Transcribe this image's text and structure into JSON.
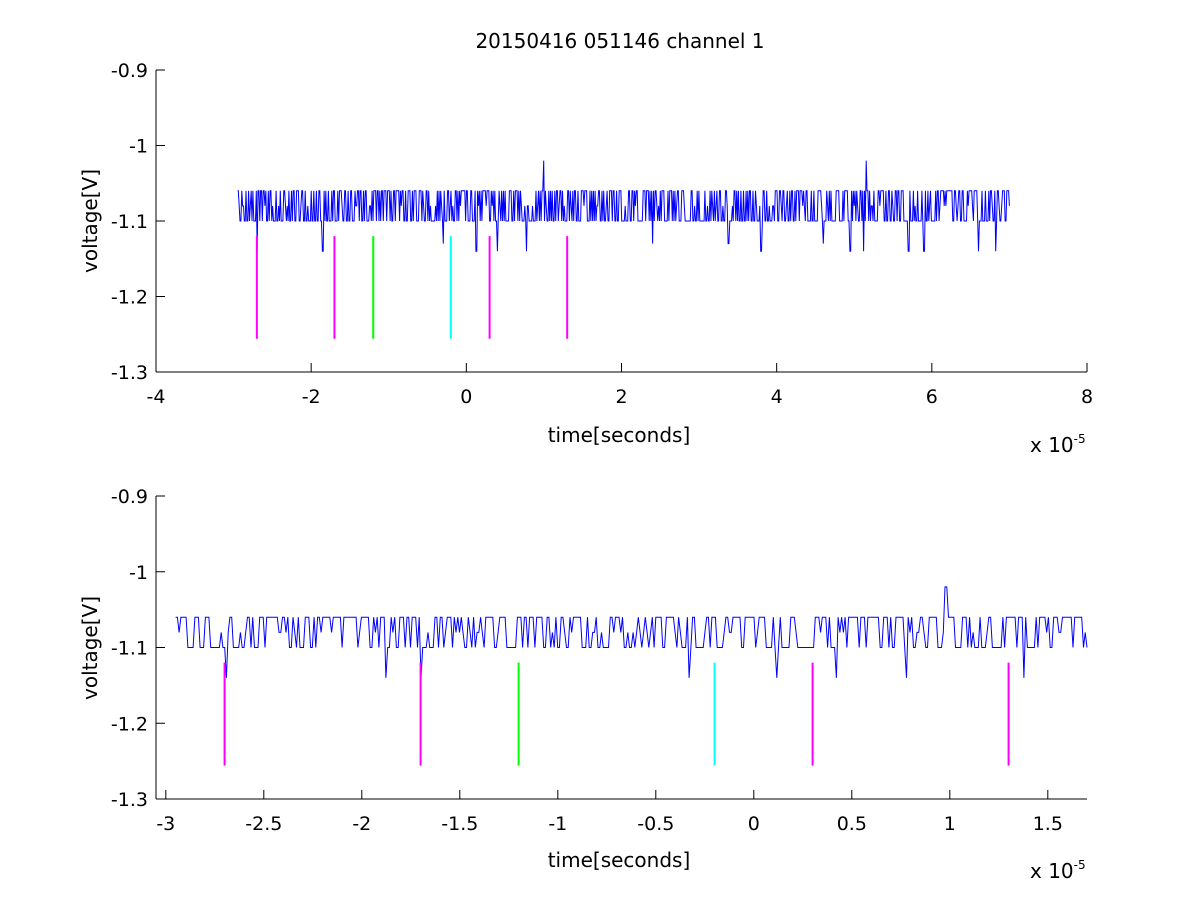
{
  "figure": {
    "title": "20150416 051146 channel 1"
  },
  "chart_data": [
    {
      "type": "line",
      "title": "20150416 051146 channel 1",
      "xlabel": "time[seconds]",
      "ylabel": "voltage[V]",
      "x_exponent_label": "x 10",
      "x_exponent": "-5",
      "xlim": [
        -4,
        8
      ],
      "ylim": [
        -1.3,
        -0.9
      ],
      "x_ticks": [
        -4,
        -2,
        0,
        2,
        4,
        6,
        8
      ],
      "x_tick_labels": [
        "-4",
        "-2",
        "0",
        "2",
        "4",
        "6",
        "8"
      ],
      "y_ticks": [
        -0.9,
        -1,
        -1.1,
        -1.2,
        -1.3
      ],
      "y_tick_labels": [
        "-0.9",
        "-1",
        "-1.1",
        "-1.2",
        "-1.3"
      ],
      "grid": false,
      "series": [
        {
          "color": "#0000ff",
          "x_range": [
            -2.95,
            7.0
          ],
          "baseline": -1.1,
          "upper_level": -1.06,
          "spikes_up": [
            [
              1.0,
              -1.02
            ],
            [
              5.15,
              -1.02
            ]
          ],
          "dips": [
            [
              -2.7,
              -1.14
            ],
            [
              -1.85,
              -1.14
            ],
            [
              -0.3,
              -1.13
            ],
            [
              0.13,
              -1.14
            ],
            [
              0.4,
              -1.14
            ],
            [
              0.78,
              -1.14
            ],
            [
              2.4,
              -1.13
            ],
            [
              3.38,
              -1.13
            ],
            [
              3.8,
              -1.14
            ],
            [
              4.6,
              -1.13
            ],
            [
              4.95,
              -1.14
            ],
            [
              5.12,
              -1.14
            ],
            [
              5.7,
              -1.14
            ],
            [
              5.9,
              -1.14
            ],
            [
              6.6,
              -1.14
            ],
            [
              6.82,
              -1.14
            ]
          ]
        }
      ],
      "markers": [
        {
          "x": -2.7,
          "y0": -1.256,
          "y1": -1.12,
          "color": "#ff00ff"
        },
        {
          "x": -1.7,
          "y0": -1.256,
          "y1": -1.12,
          "color": "#ff00ff"
        },
        {
          "x": -1.2,
          "y0": -1.256,
          "y1": -1.12,
          "color": "#00ff00"
        },
        {
          "x": -0.2,
          "y0": -1.256,
          "y1": -1.12,
          "color": "#00ffff"
        },
        {
          "x": 0.3,
          "y0": -1.256,
          "y1": -1.12,
          "color": "#ff00ff"
        },
        {
          "x": 1.3,
          "y0": -1.256,
          "y1": -1.12,
          "color": "#ff00ff"
        }
      ]
    },
    {
      "type": "line",
      "title": "",
      "xlabel": "time[seconds]",
      "ylabel": "voltage[V]",
      "x_exponent_label": "x 10",
      "x_exponent": "-5",
      "xlim": [
        -3.05,
        1.7
      ],
      "ylim": [
        -1.3,
        -0.9
      ],
      "x_ticks": [
        -3,
        -2.5,
        -2,
        -1.5,
        -1,
        -0.5,
        0,
        0.5,
        1,
        1.5
      ],
      "x_tick_labels": [
        "-3",
        "-2.5",
        "-2",
        "-1.5",
        "-1",
        "-0.5",
        "0",
        "0.5",
        "1",
        "1.5"
      ],
      "y_ticks": [
        -0.9,
        -1,
        -1.1,
        -1.2,
        -1.3
      ],
      "y_tick_labels": [
        "-0.9",
        "-1",
        "-1.1",
        "-1.2",
        "-1.3"
      ],
      "grid": false,
      "series": [
        {
          "color": "#0000ff",
          "x_range": [
            -2.95,
            1.7
          ],
          "baseline": -1.1,
          "upper_level": -1.06,
          "spikes_up": [
            [
              0.98,
              -1.02
            ]
          ],
          "dips": [
            [
              -2.69,
              -1.14
            ],
            [
              -1.88,
              -1.14
            ],
            [
              -1.7,
              -1.14
            ],
            [
              -0.33,
              -1.14
            ],
            [
              0.12,
              -1.14
            ],
            [
              0.42,
              -1.14
            ],
            [
              0.78,
              -1.14
            ],
            [
              1.38,
              -1.14
            ]
          ]
        }
      ],
      "markers": [
        {
          "x": -2.7,
          "y0": -1.256,
          "y1": -1.12,
          "color": "#ff00ff"
        },
        {
          "x": -1.7,
          "y0": -1.256,
          "y1": -1.12,
          "color": "#ff00ff"
        },
        {
          "x": -1.2,
          "y0": -1.256,
          "y1": -1.12,
          "color": "#00ff00"
        },
        {
          "x": -0.2,
          "y0": -1.256,
          "y1": -1.12,
          "color": "#00ffff"
        },
        {
          "x": 0.3,
          "y0": -1.256,
          "y1": -1.12,
          "color": "#ff00ff"
        },
        {
          "x": 1.3,
          "y0": -1.256,
          "y1": -1.12,
          "color": "#ff00ff"
        }
      ]
    }
  ]
}
